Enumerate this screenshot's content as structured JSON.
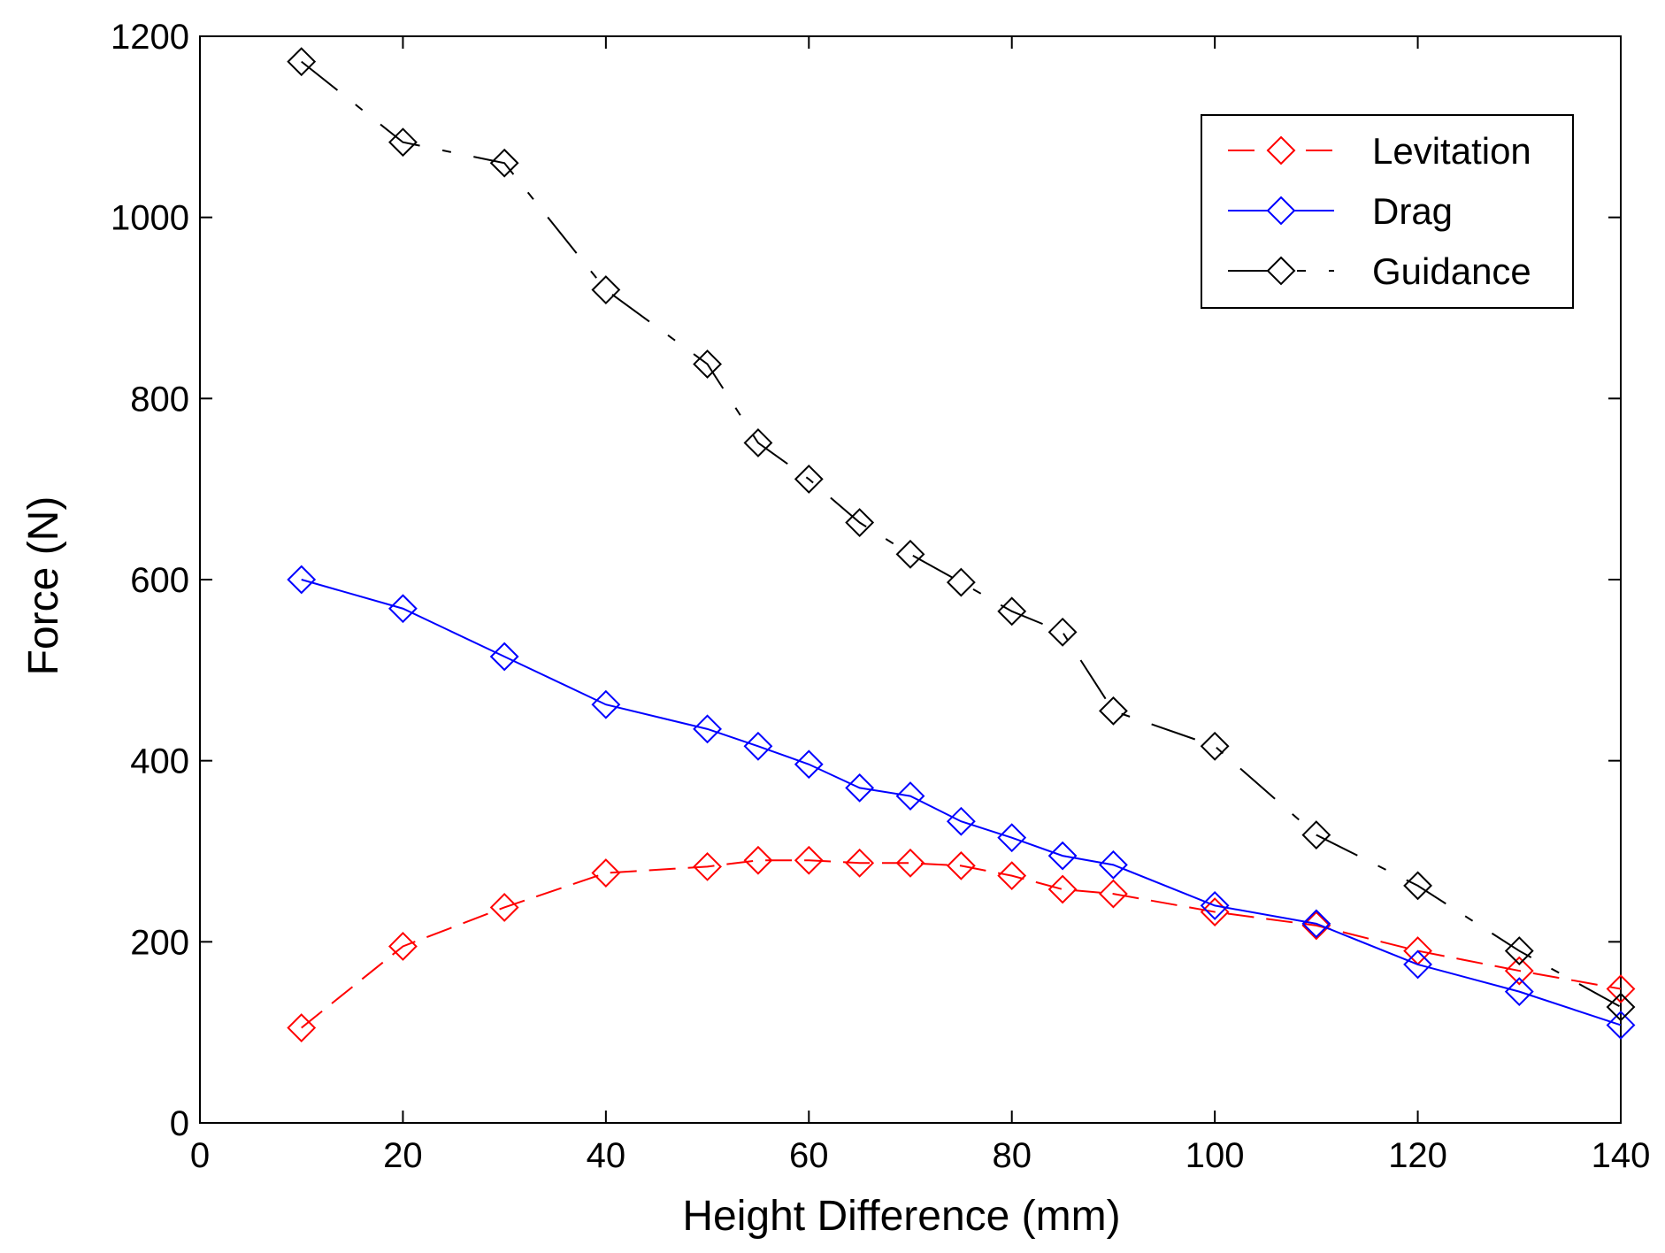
{
  "chart_data": {
    "type": "line",
    "title": "",
    "xlabel": "Height Difference (mm)",
    "ylabel": "Force (N)",
    "xlim": [
      0,
      140
    ],
    "ylim": [
      0,
      1200
    ],
    "xticks": [
      0,
      20,
      40,
      60,
      80,
      100,
      120,
      140
    ],
    "yticks": [
      0,
      200,
      400,
      600,
      800,
      1000,
      1200
    ],
    "grid": false,
    "legend_position": "top-right",
    "series": [
      {
        "name": "Levitation",
        "color": "#ff0000",
        "line_style": "dashed",
        "marker": "diamond",
        "x": [
          10,
          20,
          30,
          40,
          50,
          55,
          60,
          65,
          70,
          75,
          80,
          85,
          90,
          100,
          110,
          120,
          130,
          140
        ],
        "y": [
          105,
          195,
          238,
          276,
          283,
          290,
          290,
          287,
          287,
          284,
          273,
          258,
          253,
          233,
          218,
          190,
          168,
          148
        ]
      },
      {
        "name": "Drag",
        "color": "#0000ff",
        "line_style": "solid",
        "marker": "diamond",
        "x": [
          10,
          20,
          30,
          40,
          50,
          55,
          60,
          65,
          70,
          75,
          80,
          85,
          90,
          100,
          110,
          120,
          130,
          140
        ],
        "y": [
          600,
          568,
          515,
          462,
          435,
          416,
          396,
          370,
          361,
          333,
          315,
          295,
          285,
          240,
          220,
          175,
          145,
          108
        ]
      },
      {
        "name": "Guidance",
        "color": "#000000",
        "line_style": "dash-dot",
        "marker": "diamond",
        "x": [
          10,
          20,
          30,
          40,
          50,
          55,
          60,
          65,
          70,
          75,
          80,
          85,
          90,
          100,
          110,
          120,
          130,
          140
        ],
        "y": [
          1172,
          1083,
          1060,
          920,
          838,
          751,
          711,
          663,
          628,
          597,
          565,
          542,
          455,
          416,
          318,
          262,
          190,
          128
        ]
      }
    ]
  }
}
